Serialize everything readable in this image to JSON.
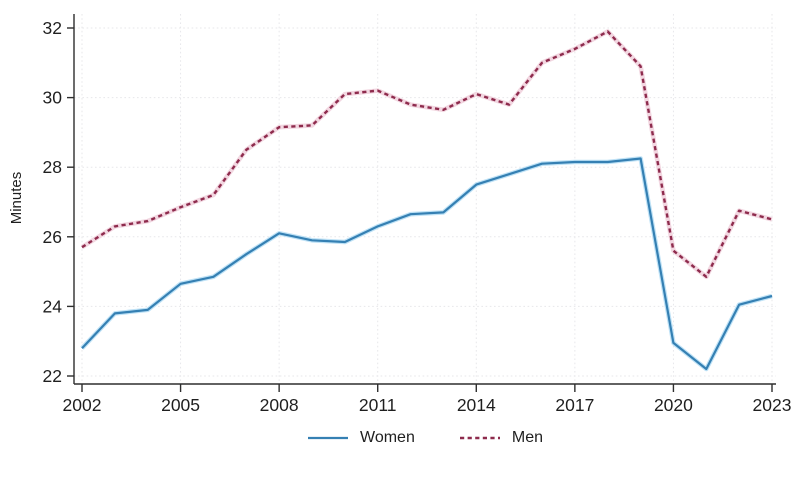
{
  "chart_data": {
    "type": "line",
    "title": "",
    "xlabel": "",
    "ylabel": "Minutes",
    "x": [
      2002,
      2003,
      2004,
      2005,
      2006,
      2007,
      2008,
      2009,
      2010,
      2011,
      2012,
      2013,
      2014,
      2015,
      2016,
      2017,
      2018,
      2019,
      2020,
      2021,
      2022,
      2023
    ],
    "series": [
      {
        "name": "Women",
        "line_style": "solid",
        "color": "#3580b3",
        "halo_color": "#bfe2f6",
        "values": [
          22.8,
          23.8,
          23.9,
          24.65,
          24.85,
          25.5,
          26.1,
          25.9,
          25.85,
          26.3,
          26.65,
          26.7,
          27.5,
          27.8,
          28.1,
          28.15,
          28.15,
          28.25,
          22.95,
          22.2,
          24.05,
          24.3
        ]
      },
      {
        "name": "Men",
        "line_style": "dashed",
        "color": "#8e2b4d",
        "halo_color": "#f2d7e1",
        "values": [
          25.7,
          26.3,
          26.45,
          26.85,
          27.2,
          28.5,
          29.15,
          29.2,
          30.1,
          30.2,
          29.8,
          29.65,
          30.1,
          29.8,
          31.0,
          31.4,
          31.9,
          30.9,
          25.6,
          24.85,
          26.75,
          26.5
        ]
      }
    ],
    "x_ticks": [
      2002,
      2005,
      2008,
      2011,
      2014,
      2017,
      2020,
      2023
    ],
    "y_ticks": [
      22,
      24,
      26,
      28,
      30,
      32
    ],
    "ylim": [
      22,
      32
    ],
    "xlim": [
      2002,
      2023
    ],
    "grid": true,
    "grid_color": "#e7e7ea",
    "axis_color": "#2e2e2e",
    "tick_label_color": "#1f1f1f",
    "legend_position": "bottom"
  }
}
